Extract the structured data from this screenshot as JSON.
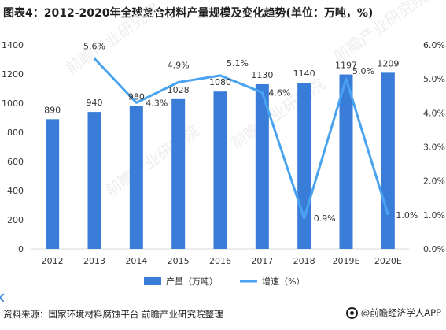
{
  "title": "图表4：2012-2020年全球复合材料产量规模及变化趋势(单位：万吨，%)",
  "source": "资料来源：国家环境材料腐蚀平台 前瞻产业研究院整理",
  "brand": "@前瞻经济学人APP",
  "watermark": "前瞻产业研究院",
  "colors": {
    "bar": "#3a7dd8",
    "line": "#4aa3f0",
    "axis": "#d9d9d9",
    "text": "#333333"
  },
  "chart_data": {
    "type": "bar",
    "categories": [
      "2012",
      "2013",
      "2014",
      "2015",
      "2016",
      "2017",
      "2018",
      "2019E",
      "2020E"
    ],
    "series": [
      {
        "name": "产量（万吨）",
        "type": "bar",
        "axis": "left",
        "values": [
          890,
          940,
          980,
          1028,
          1080,
          1130,
          1140,
          1197,
          1209
        ],
        "labels": [
          "890",
          "940",
          "980",
          "1028",
          "1080",
          "1130",
          "1140",
          "1197",
          "1209"
        ]
      },
      {
        "name": "增速（%）",
        "type": "line",
        "axis": "right",
        "values": [
          null,
          5.6,
          4.3,
          4.9,
          5.1,
          4.6,
          0.9,
          5.0,
          1.0
        ],
        "labels": [
          "",
          "5.6%",
          "4.3%",
          "4.9%",
          "5.1%",
          "4.6%",
          "0.9%",
          "5.0%",
          "1.0%"
        ]
      }
    ],
    "y_left": {
      "min": 0,
      "max": 1400,
      "ticks": [
        "0",
        "200",
        "400",
        "600",
        "800",
        "1000",
        "1200",
        "1400"
      ]
    },
    "y_right": {
      "min": 0,
      "max": 6,
      "ticks": [
        "0.0%",
        "1.0%",
        "2.0%",
        "3.0%",
        "4.0%",
        "5.0%",
        "6.0%"
      ]
    },
    "grid": false,
    "legend_position": "bottom"
  }
}
